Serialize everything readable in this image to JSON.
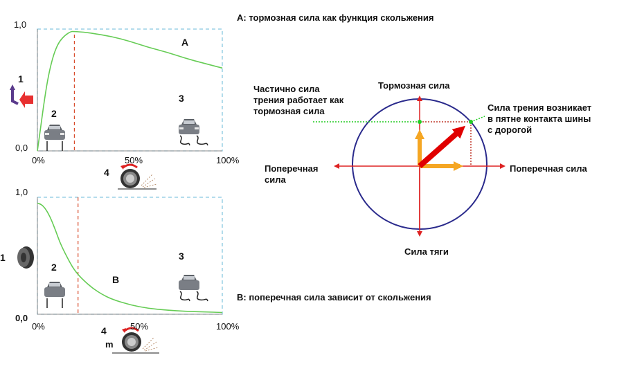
{
  "captions": {
    "chart_a": "A: тормозная сила как функция скольжения",
    "chart_b": "B: поперечная сила зависит от скольжения"
  },
  "circle": {
    "top_label": "Тормозная сила",
    "bottom_label": "Сила тяги",
    "left_label": [
      "Поперечная",
      "сила"
    ],
    "right_label": "Поперечная сила",
    "partial_note": [
      "Частично сила",
      "трения работает как",
      "тормозная сила"
    ],
    "friction_note": [
      "Сила трения возникает",
      "в пятне контакта шины",
      "с дорогой"
    ]
  },
  "markers": {
    "top": {
      "m1": "1",
      "m2": "2",
      "m3": "3",
      "m4": "4"
    },
    "bottom": {
      "m1": "1",
      "m2": "2",
      "m3": "3",
      "m4": "4",
      "m_label": "m"
    }
  },
  "colors": {
    "curve": "#66cc55",
    "axis_dashed": "#88c8e0",
    "peak_dashed": "#d84a2a",
    "red_arrow": "#e00000",
    "orange_arrow": "#f5a623",
    "circle": "#2a2a8c",
    "green_dot": "#22cc22",
    "dotted_red": "#c0392b"
  },
  "icons": [
    "car-icon",
    "car-skid-icon",
    "tyre-icon",
    "wheel-slip-icon",
    "steering-arrow-icon"
  ],
  "chart_data": [
    {
      "type": "line",
      "title": "A: тормозная сила как функция скольжения",
      "y_ticks": [
        "1,0",
        "0,0"
      ],
      "x_ticks": [
        "0%",
        "50%",
        "100%"
      ],
      "xlim": [
        0,
        100
      ],
      "ylim": [
        0,
        1
      ],
      "peak_x": 20,
      "series": [
        {
          "name": "A",
          "x": [
            0,
            2,
            4,
            6,
            8,
            10,
            12,
            15,
            18,
            20,
            25,
            30,
            40,
            50,
            60,
            70,
            80,
            90,
            100
          ],
          "y": [
            0,
            0.22,
            0.44,
            0.62,
            0.75,
            0.84,
            0.9,
            0.95,
            0.98,
            0.98,
            0.975,
            0.965,
            0.94,
            0.9,
            0.85,
            0.81,
            0.76,
            0.72,
            0.68
          ]
        }
      ]
    },
    {
      "type": "line",
      "title": "B: поперечная сила зависит от скольжения",
      "y_ticks": [
        "1,0",
        "0,0"
      ],
      "x_ticks": [
        "0%",
        "50%",
        "100%"
      ],
      "xlim": [
        0,
        100
      ],
      "ylim": [
        0,
        1
      ],
      "peak_x": 22,
      "series": [
        {
          "name": "B",
          "x": [
            0,
            2,
            4,
            6,
            8,
            10,
            12,
            15,
            18,
            20,
            22,
            25,
            30,
            35,
            40,
            50,
            60,
            70,
            80,
            90,
            100
          ],
          "y": [
            0.95,
            0.94,
            0.91,
            0.86,
            0.79,
            0.71,
            0.62,
            0.52,
            0.43,
            0.38,
            0.34,
            0.29,
            0.22,
            0.17,
            0.13,
            0.08,
            0.05,
            0.035,
            0.025,
            0.02,
            0.015
          ]
        }
      ]
    }
  ]
}
